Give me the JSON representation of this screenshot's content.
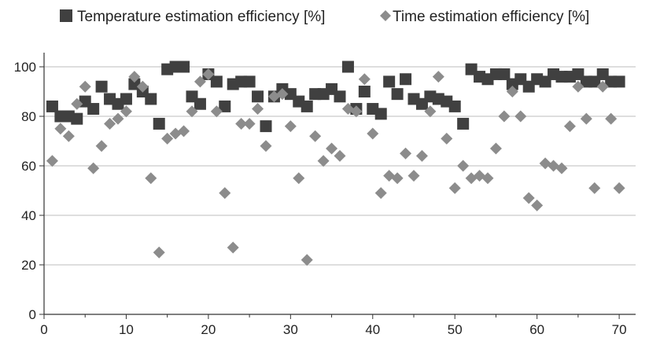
{
  "chart_data": {
    "type": "scatter",
    "title": "",
    "xlabel": "",
    "ylabel": "",
    "xlim": [
      0,
      72
    ],
    "ylim": [
      0,
      105
    ],
    "xticks": [
      0,
      10,
      20,
      30,
      40,
      50,
      60,
      70
    ],
    "yticks": [
      0,
      20,
      40,
      60,
      80,
      100
    ],
    "grid": "horizontal",
    "legend": "top",
    "x": [
      1,
      2,
      3,
      4,
      5,
      6,
      7,
      8,
      9,
      10,
      11,
      12,
      13,
      14,
      15,
      16,
      17,
      18,
      19,
      20,
      21,
      22,
      23,
      24,
      25,
      26,
      27,
      28,
      29,
      30,
      31,
      32,
      33,
      34,
      35,
      36,
      37,
      38,
      39,
      40,
      41,
      42,
      43,
      44,
      45,
      46,
      47,
      48,
      49,
      50,
      51,
      52,
      53,
      54,
      55,
      56,
      57,
      58,
      59,
      60,
      61,
      62,
      63,
      64,
      65,
      66,
      67,
      68,
      69,
      70
    ],
    "series": [
      {
        "name": "Temperature estimation efficiency [%]",
        "marker": "square",
        "color": "#404040",
        "values": [
          84,
          80,
          80,
          79,
          86,
          83,
          92,
          87,
          85,
          87,
          93,
          90,
          87,
          77,
          99,
          100,
          100,
          88,
          85,
          97,
          94,
          84,
          93,
          94,
          94,
          88,
          76,
          88,
          91,
          89,
          86,
          84,
          89,
          89,
          91,
          88,
          100,
          83,
          90,
          83,
          81,
          94,
          89,
          95,
          87,
          85,
          88,
          87,
          86,
          84,
          77,
          99,
          96,
          95,
          97,
          97,
          93,
          95,
          92,
          95,
          94,
          97,
          96,
          96,
          97,
          94,
          94,
          97,
          94,
          94
        ]
      },
      {
        "name": "Time estimation efficiency [%]",
        "marker": "diamond",
        "color": "#8c8c8c",
        "values": [
          62,
          75,
          72,
          85,
          92,
          59,
          68,
          77,
          79,
          82,
          96,
          92,
          55,
          25,
          71,
          73,
          74,
          82,
          94,
          97,
          82,
          49,
          27,
          77,
          77,
          83,
          68,
          88,
          89,
          76,
          55,
          22,
          72,
          62,
          67,
          64,
          83,
          82,
          95,
          73,
          49,
          56,
          55,
          65,
          56,
          64,
          82,
          96,
          71,
          51,
          60,
          55,
          56,
          55,
          67,
          80,
          90,
          80,
          47,
          44,
          61,
          60,
          59,
          76,
          92,
          79,
          51,
          92,
          79,
          51
        ]
      }
    ]
  }
}
